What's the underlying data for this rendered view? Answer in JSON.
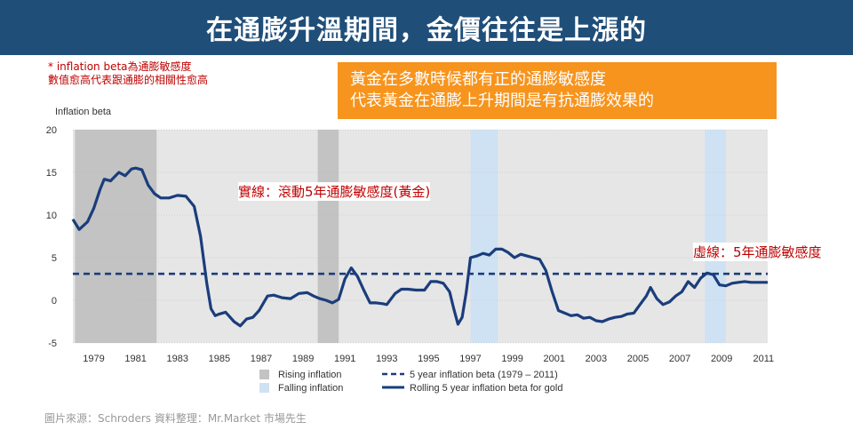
{
  "header": {
    "title": "在通膨升溫期間，金價往往是上漲的",
    "bg_color": "#1f4e79"
  },
  "note": {
    "line1": "* inflation  beta為通膨敏感度",
    "line2": "數值愈高代表跟通膨的相關性愈高",
    "color": "#c00000"
  },
  "callout": {
    "line1": "黃金在多數時候都有正的通膨敏感度",
    "line2": "代表黃金在通膨上升期間是有抗通膨效果的",
    "bg_color": "#f7941d"
  },
  "annotations": {
    "solid_line": "實線：滾動5年通膨敏感度(黃金)",
    "dashed_line": "虛線：5年通膨敏感度"
  },
  "source": "圖片來源：Schroders     資料整理：Mr.Market  市場先生",
  "chart_data": {
    "type": "line",
    "ylabel": "Inflation beta",
    "ylim": [
      -5,
      20
    ],
    "xlim": [
      1978,
      2011.2
    ],
    "yticks": [
      "20",
      "15",
      "10",
      "5",
      "0",
      "-5"
    ],
    "xticks": [
      "1979",
      "1981",
      "1983",
      "1985",
      "1987",
      "1989",
      "1991",
      "1993",
      "1995",
      "1997",
      "1999",
      "2001",
      "2003",
      "2005",
      "2007",
      "2009",
      "2011"
    ],
    "grid": true,
    "colors": {
      "plot_bg": "#e6e6e6",
      "rising": "#c3c3c3",
      "falling": "#cfe2f3",
      "line": "#1a3d7c"
    },
    "shaded_periods": [
      {
        "type": "rising",
        "start": 1978.1,
        "end": 1982.0
      },
      {
        "type": "rising",
        "start": 1989.7,
        "end": 1990.7
      },
      {
        "type": "falling",
        "start": 1997.0,
        "end": 1998.3
      },
      {
        "type": "falling",
        "start": 2008.2,
        "end": 2009.2
      }
    ],
    "legend": {
      "rising": "Rising inflation",
      "falling": "Falling inflation",
      "dashed": "5 year inflation beta (1979 – 2011)",
      "solid": "Rolling 5 year inflation beta for gold"
    },
    "series": [
      {
        "name": "5 year inflation beta (1979 – 2011)",
        "style": "dashed",
        "x": [
          1978.0,
          2011.2
        ],
        "y": [
          3.1,
          3.1
        ]
      },
      {
        "name": "Rolling 5 year inflation beta for gold",
        "style": "solid",
        "x": [
          1978.0,
          1978.3,
          1978.7,
          1979.0,
          1979.3,
          1979.5,
          1979.8,
          1980.2,
          1980.5,
          1980.8,
          1981.0,
          1981.3,
          1981.6,
          1981.9,
          1982.2,
          1982.6,
          1983.0,
          1983.4,
          1983.8,
          1984.1,
          1984.4,
          1984.6,
          1984.8,
          1985.0,
          1985.3,
          1985.7,
          1986.0,
          1986.3,
          1986.6,
          1986.9,
          1987.3,
          1987.6,
          1988.0,
          1988.4,
          1988.8,
          1989.2,
          1989.5,
          1989.8,
          1990.1,
          1990.4,
          1990.7,
          1991.0,
          1991.3,
          1991.6,
          1991.9,
          1992.2,
          1992.5,
          1992.8,
          1993.0,
          1993.4,
          1993.7,
          1994.0,
          1994.4,
          1994.8,
          1995.1,
          1995.4,
          1995.7,
          1996.0,
          1996.2,
          1996.4,
          1996.6,
          1996.8,
          1997.0,
          1997.3,
          1997.6,
          1997.9,
          1998.2,
          1998.5,
          1998.8,
          1999.1,
          1999.4,
          1999.7,
          2000.0,
          2000.3,
          2000.6,
          2000.9,
          2001.2,
          2001.5,
          2001.8,
          2002.1,
          2002.4,
          2002.7,
          2003.0,
          2003.3,
          2003.6,
          2003.9,
          2004.2,
          2004.5,
          2004.8,
          2005.1,
          2005.4,
          2005.6,
          2005.9,
          2006.2,
          2006.5,
          2006.8,
          2007.1,
          2007.4,
          2007.7,
          2008.0,
          2008.3,
          2008.6,
          2008.9,
          2009.2,
          2009.5,
          2009.8,
          2010.1,
          2010.4,
          2010.7,
          2011.0,
          2011.2
        ],
        "y": [
          9.5,
          8.3,
          9.2,
          10.8,
          13.0,
          14.2,
          14.0,
          15.0,
          14.6,
          15.4,
          15.5,
          15.3,
          13.5,
          12.5,
          12.0,
          12.0,
          12.3,
          12.2,
          11.0,
          7.5,
          2.0,
          -1.0,
          -1.8,
          -1.6,
          -1.4,
          -2.5,
          -3.0,
          -2.2,
          -2.0,
          -1.2,
          0.5,
          0.6,
          0.3,
          0.2,
          0.8,
          0.9,
          0.5,
          0.2,
          0.0,
          -0.3,
          0.1,
          2.5,
          3.8,
          2.8,
          1.2,
          -0.3,
          -0.3,
          -0.4,
          -0.5,
          0.8,
          1.3,
          1.3,
          1.2,
          1.2,
          2.2,
          2.2,
          2.0,
          1.0,
          -1.0,
          -2.8,
          -2.0,
          1.0,
          5.0,
          5.2,
          5.5,
          5.3,
          6.0,
          6.0,
          5.6,
          5.0,
          5.4,
          5.2,
          5.0,
          4.8,
          3.5,
          1.0,
          -1.2,
          -1.5,
          -1.8,
          -1.7,
          -2.1,
          -2.0,
          -2.4,
          -2.5,
          -2.2,
          -2.0,
          -1.9,
          -1.6,
          -1.5,
          -0.5,
          0.5,
          1.5,
          0.2,
          -0.5,
          -0.2,
          0.5,
          1.0,
          2.2,
          1.5,
          2.6,
          3.2,
          3.0,
          1.8,
          1.7,
          2.0,
          2.1,
          2.2,
          2.1,
          2.1,
          2.1,
          2.1
        ]
      }
    ]
  }
}
